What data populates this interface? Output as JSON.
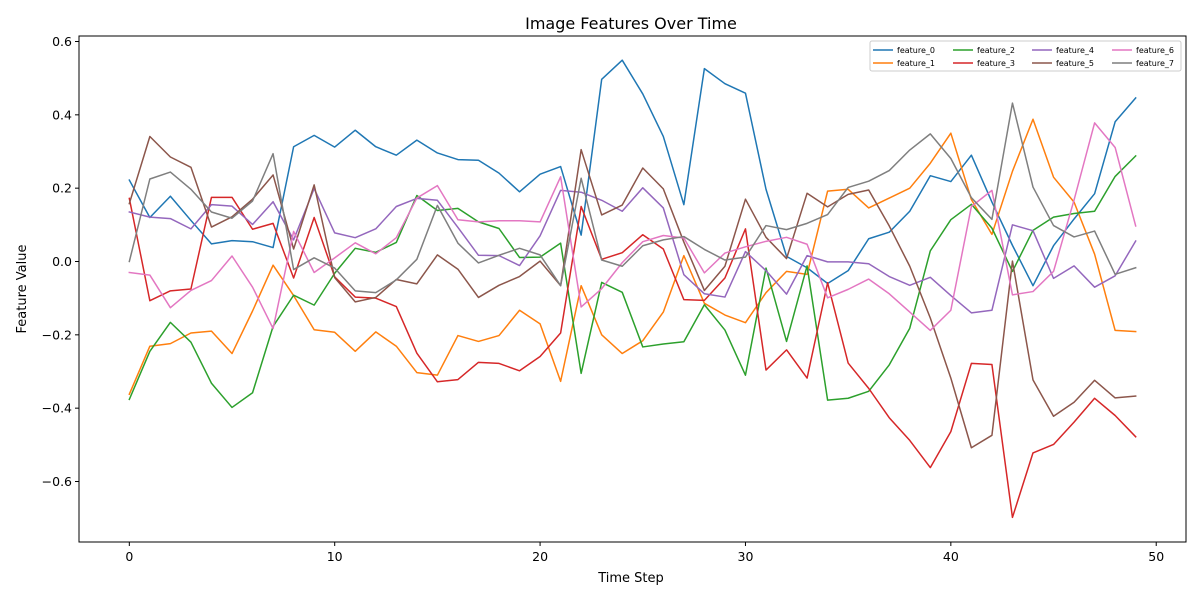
{
  "chart_data": {
    "type": "line",
    "title": "Image Features Over Time",
    "xlabel": "Time Step",
    "ylabel": "Feature Value",
    "xlim": [
      -2.45,
      51.45
    ],
    "ylim": [
      -0.765,
      0.615
    ],
    "xticks": [
      0,
      10,
      20,
      30,
      40,
      50
    ],
    "xtick_labels": [
      "0",
      "10",
      "20",
      "30",
      "40",
      "50"
    ],
    "yticks": [
      -0.6,
      -0.4,
      -0.2,
      0.0,
      0.2,
      0.4,
      0.6
    ],
    "ytick_labels": [
      "−0.6",
      "−0.4",
      "−0.2",
      "0.0",
      "0.2",
      "0.4",
      "0.6"
    ],
    "grid": false,
    "legend": "top-right",
    "series": [
      {
        "name": "feature_0",
        "color": "#1f77b4",
        "values": [
          0.222,
          0.12,
          0.178,
          0.112,
          0.048,
          0.057,
          0.054,
          0.038,
          0.313,
          0.344,
          0.312,
          0.358,
          0.313,
          0.29,
          0.331,
          0.296,
          0.278,
          0.276,
          0.241,
          0.19,
          0.238,
          0.259,
          0.072,
          0.497,
          0.549,
          0.457,
          0.341,
          0.155,
          0.526,
          0.485,
          0.459,
          0.197,
          0.014,
          -0.017,
          -0.06,
          -0.025,
          0.062,
          0.08,
          0.137,
          0.234,
          0.218,
          0.29,
          0.162,
          0.044,
          -0.066,
          0.043,
          0.116,
          0.185,
          0.381,
          0.446
        ]
      },
      {
        "name": "feature_1",
        "color": "#ff7f0e",
        "values": [
          -0.362,
          -0.231,
          -0.224,
          -0.195,
          -0.19,
          -0.251,
          -0.135,
          -0.01,
          -0.093,
          -0.186,
          -0.193,
          -0.245,
          -0.192,
          -0.231,
          -0.303,
          -0.31,
          -0.202,
          -0.218,
          -0.202,
          -0.133,
          -0.17,
          -0.327,
          -0.066,
          -0.2,
          -0.251,
          -0.216,
          -0.138,
          0.016,
          -0.114,
          -0.146,
          -0.167,
          -0.085,
          -0.027,
          -0.035,
          0.192,
          0.197,
          0.146,
          0.173,
          0.2,
          0.268,
          0.35,
          0.169,
          0.074,
          0.246,
          0.388,
          0.23,
          0.162,
          0.02,
          -0.188,
          -0.191
        ]
      },
      {
        "name": "feature_2",
        "color": "#2ca02c",
        "values": [
          -0.376,
          -0.245,
          -0.166,
          -0.22,
          -0.332,
          -0.398,
          -0.358,
          -0.177,
          -0.092,
          -0.119,
          -0.032,
          0.036,
          0.025,
          0.052,
          0.18,
          0.139,
          0.145,
          0.108,
          0.09,
          0.011,
          0.012,
          0.05,
          -0.305,
          -0.057,
          -0.084,
          -0.233,
          -0.225,
          -0.219,
          -0.118,
          -0.187,
          -0.31,
          -0.018,
          -0.218,
          -0.012,
          -0.378,
          -0.373,
          -0.354,
          -0.282,
          -0.182,
          0.029,
          0.114,
          0.156,
          0.091,
          -0.027,
          0.085,
          0.121,
          0.131,
          0.137,
          0.232,
          0.288
        ]
      },
      {
        "name": "feature_3",
        "color": "#d62728",
        "values": [
          0.172,
          -0.107,
          -0.08,
          -0.075,
          0.175,
          0.175,
          0.088,
          0.104,
          -0.045,
          0.12,
          -0.042,
          -0.097,
          -0.1,
          -0.123,
          -0.25,
          -0.328,
          -0.322,
          -0.275,
          -0.278,
          -0.298,
          -0.259,
          -0.195,
          0.15,
          0.006,
          0.024,
          0.073,
          0.034,
          -0.104,
          -0.106,
          -0.045,
          0.089,
          -0.296,
          -0.241,
          -0.318,
          -0.058,
          -0.277,
          -0.346,
          -0.426,
          -0.488,
          -0.562,
          -0.464,
          -0.278,
          -0.281,
          -0.698,
          -0.522,
          -0.499,
          -0.438,
          -0.373,
          -0.42,
          -0.478
        ]
      },
      {
        "name": "feature_4",
        "color": "#9467bd",
        "values": [
          0.135,
          0.121,
          0.117,
          0.089,
          0.155,
          0.151,
          0.101,
          0.163,
          0.059,
          0.199,
          0.078,
          0.065,
          0.089,
          0.15,
          0.172,
          0.167,
          0.093,
          0.017,
          0.016,
          -0.011,
          0.07,
          0.194,
          0.189,
          0.167,
          0.137,
          0.201,
          0.146,
          -0.036,
          -0.088,
          -0.097,
          0.027,
          -0.025,
          -0.089,
          0.016,
          -0.001,
          -0.001,
          -0.006,
          -0.041,
          -0.065,
          -0.043,
          -0.093,
          -0.14,
          -0.133,
          0.1,
          0.084,
          -0.046,
          -0.012,
          -0.07,
          -0.039,
          0.056
        ]
      },
      {
        "name": "feature_5",
        "color": "#8c564b",
        "values": [
          0.158,
          0.341,
          0.285,
          0.257,
          0.094,
          0.122,
          0.17,
          0.236,
          0.034,
          0.209,
          -0.044,
          -0.11,
          -0.098,
          -0.049,
          -0.061,
          0.018,
          -0.021,
          -0.098,
          -0.065,
          -0.041,
          0.001,
          -0.066,
          0.305,
          0.127,
          0.154,
          0.255,
          0.198,
          0.053,
          -0.079,
          -0.013,
          0.17,
          0.066,
          0.008,
          0.186,
          0.149,
          0.183,
          0.195,
          0.097,
          -0.013,
          -0.154,
          -0.318,
          -0.508,
          -0.474,
          0.001,
          -0.323,
          -0.422,
          -0.384,
          -0.324,
          -0.372,
          -0.367
        ]
      },
      {
        "name": "feature_6",
        "color": "#e377c2",
        "values": [
          -0.03,
          -0.037,
          -0.126,
          -0.079,
          -0.052,
          0.015,
          -0.07,
          -0.183,
          0.082,
          -0.03,
          0.01,
          0.051,
          0.021,
          0.065,
          0.173,
          0.207,
          0.114,
          0.108,
          0.111,
          0.111,
          0.108,
          0.231,
          -0.124,
          -0.074,
          -0.003,
          0.054,
          0.071,
          0.064,
          -0.031,
          0.023,
          0.04,
          0.055,
          0.066,
          0.047,
          -0.099,
          -0.076,
          -0.048,
          -0.088,
          -0.138,
          -0.188,
          -0.133,
          0.15,
          0.194,
          -0.091,
          -0.082,
          -0.027,
          0.168,
          0.378,
          0.311,
          0.097
        ]
      },
      {
        "name": "feature_7",
        "color": "#7f7f7f",
        "values": [
          0.0,
          0.225,
          0.244,
          0.197,
          0.135,
          0.118,
          0.165,
          0.294,
          -0.022,
          0.01,
          -0.018,
          -0.08,
          -0.085,
          -0.05,
          0.006,
          0.153,
          0.05,
          -0.004,
          0.017,
          0.036,
          0.018,
          -0.066,
          0.227,
          0.004,
          -0.013,
          0.043,
          0.059,
          0.068,
          0.033,
          0.004,
          0.012,
          0.098,
          0.087,
          0.104,
          0.128,
          0.202,
          0.219,
          0.248,
          0.304,
          0.348,
          0.281,
          0.174,
          0.115,
          0.432,
          0.203,
          0.098,
          0.067,
          0.083,
          -0.035,
          -0.017
        ]
      }
    ]
  }
}
